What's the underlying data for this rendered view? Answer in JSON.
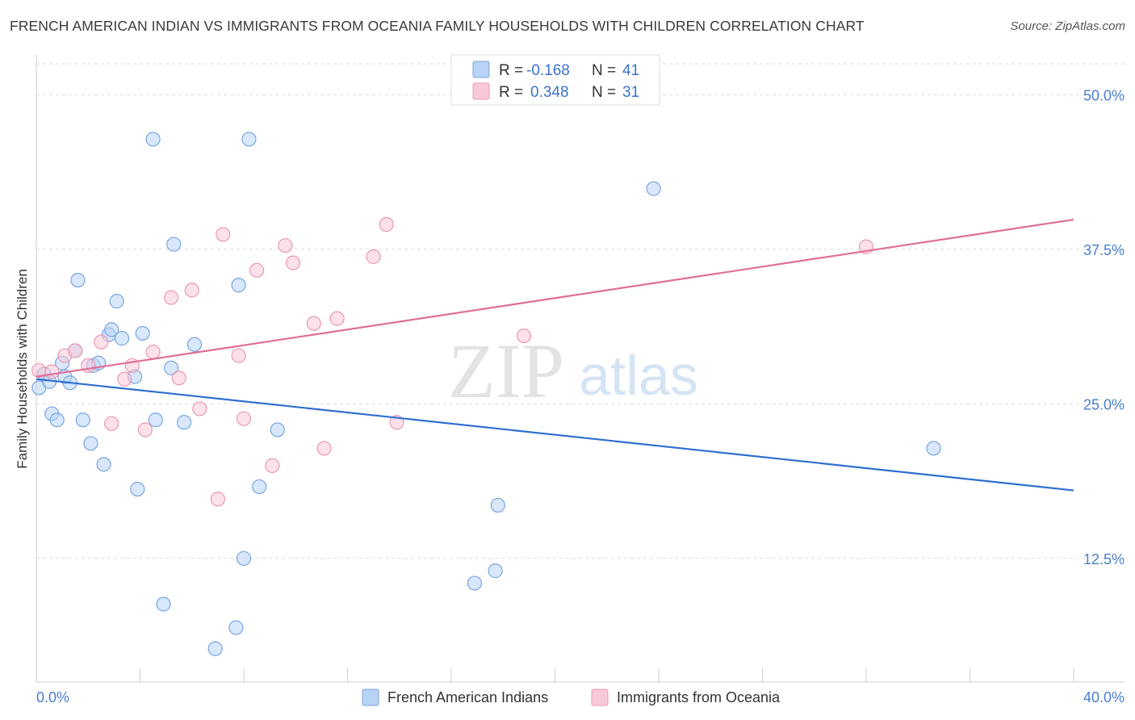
{
  "header": {
    "title": "FRENCH AMERICAN INDIAN VS IMMIGRANTS FROM OCEANIA FAMILY HOUSEHOLDS WITH CHILDREN CORRELATION CHART",
    "source": "Source: ZipAtlas.com"
  },
  "watermark": {
    "zip": "ZIP",
    "atlas": "atlas"
  },
  "legend": {
    "r_label": "R =",
    "n_label": "N =",
    "rows": [
      {
        "r": "-0.168",
        "n": "41"
      },
      {
        "r": "0.348",
        "n": "31"
      }
    ]
  },
  "bottom_legend": [
    "French American Indians",
    "Immigrants from Oceania"
  ],
  "chart_data": {
    "type": "scatter",
    "title": "FRENCH AMERICAN INDIAN VS IMMIGRANTS FROM OCEANIA FAMILY HOUSEHOLDS WITH CHILDREN CORRELATION CHART",
    "xlabel": "",
    "ylabel": "Family Households with Children",
    "xlim": [
      0,
      40
    ],
    "ylim": [
      2.5,
      52.5
    ],
    "x_tick_labels": [
      "0.0%",
      "40.0%"
    ],
    "y_ticks": [
      12.5,
      25.0,
      37.5,
      50.0
    ],
    "y_tick_labels": [
      "12.5%",
      "25.0%",
      "37.5%",
      "50.0%"
    ],
    "grid": true,
    "colors": {
      "blue_fill": "#b8d3f5",
      "blue_stroke": "#7aa6e0",
      "blue_line": "#2e6fd1",
      "pink_fill": "#f9c9d8",
      "pink_stroke": "#ea98b4",
      "pink_line": "#e06e99",
      "tick_text": "#4a7fcf"
    },
    "series": [
      {
        "name": "French American Indians",
        "color": "blue",
        "r": -0.168,
        "n": 41,
        "trend": {
          "x": [
            0,
            40
          ],
          "y": [
            27.0,
            18.0
          ]
        },
        "points": [
          [
            0.1,
            26.3
          ],
          [
            0.3,
            27.4
          ],
          [
            0.5,
            26.8
          ],
          [
            0.6,
            24.2
          ],
          [
            0.8,
            23.7
          ],
          [
            1.0,
            28.3
          ],
          [
            1.1,
            27.2
          ],
          [
            1.3,
            26.7
          ],
          [
            1.5,
            29.3
          ],
          [
            1.6,
            35.0
          ],
          [
            1.8,
            23.7
          ],
          [
            2.1,
            21.8
          ],
          [
            2.2,
            28.1
          ],
          [
            2.4,
            28.3
          ],
          [
            2.6,
            20.1
          ],
          [
            2.8,
            30.6
          ],
          [
            2.9,
            31.0
          ],
          [
            3.1,
            33.3
          ],
          [
            3.3,
            30.3
          ],
          [
            3.8,
            27.2
          ],
          [
            3.9,
            18.1
          ],
          [
            4.1,
            30.7
          ],
          [
            4.5,
            46.4
          ],
          [
            4.6,
            23.7
          ],
          [
            4.9,
            8.8
          ],
          [
            5.2,
            27.9
          ],
          [
            5.3,
            37.9
          ],
          [
            5.7,
            23.5
          ],
          [
            6.1,
            29.8
          ],
          [
            6.9,
            5.2
          ],
          [
            7.7,
            6.9
          ],
          [
            7.8,
            34.6
          ],
          [
            8.0,
            12.5
          ],
          [
            8.2,
            46.4
          ],
          [
            8.6,
            18.3
          ],
          [
            9.3,
            22.9
          ],
          [
            16.9,
            10.5
          ],
          [
            17.7,
            11.5
          ],
          [
            17.8,
            16.8
          ],
          [
            23.8,
            42.4
          ],
          [
            34.6,
            21.4
          ]
        ]
      },
      {
        "name": "Immigrants from Oceania",
        "color": "pink",
        "r": 0.348,
        "n": 31,
        "trend": {
          "x": [
            0,
            40
          ],
          "y": [
            27.2,
            39.9
          ]
        },
        "points": [
          [
            0.1,
            27.7
          ],
          [
            0.6,
            27.6
          ],
          [
            1.1,
            28.9
          ],
          [
            1.5,
            29.3
          ],
          [
            2.0,
            28.1
          ],
          [
            2.5,
            30.0
          ],
          [
            2.9,
            23.4
          ],
          [
            3.4,
            27.0
          ],
          [
            3.7,
            28.1
          ],
          [
            4.2,
            22.9
          ],
          [
            4.5,
            29.2
          ],
          [
            5.2,
            33.6
          ],
          [
            5.5,
            27.1
          ],
          [
            6.0,
            34.2
          ],
          [
            6.3,
            24.6
          ],
          [
            7.0,
            17.3
          ],
          [
            7.2,
            38.7
          ],
          [
            7.8,
            28.9
          ],
          [
            8.0,
            23.8
          ],
          [
            8.5,
            35.8
          ],
          [
            9.1,
            20.0
          ],
          [
            9.6,
            37.8
          ],
          [
            9.9,
            36.4
          ],
          [
            10.7,
            31.5
          ],
          [
            11.1,
            21.4
          ],
          [
            11.6,
            31.9
          ],
          [
            13.0,
            36.9
          ],
          [
            13.5,
            39.5
          ],
          [
            13.9,
            23.5
          ],
          [
            18.8,
            30.5
          ],
          [
            32.0,
            37.7
          ]
        ]
      }
    ]
  }
}
